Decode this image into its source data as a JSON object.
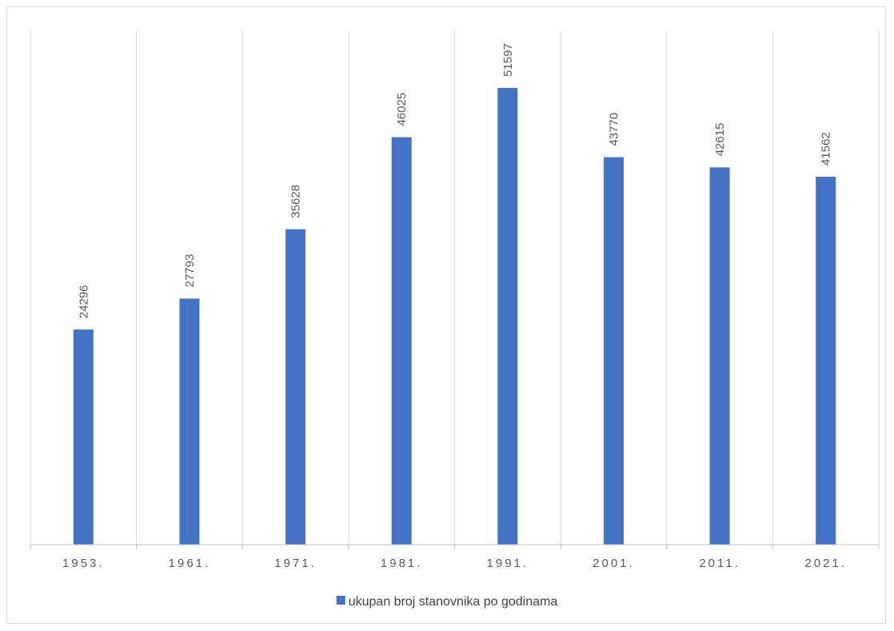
{
  "chart_data": {
    "type": "bar",
    "categories": [
      "1953.",
      "1961.",
      "1971.",
      "1981.",
      "1991.",
      "2001.",
      "2011.",
      "2021."
    ],
    "series": [
      {
        "name": "ukupan broj stanovnika po godinama",
        "values": [
          24296,
          27793,
          35628,
          46025,
          51597,
          43770,
          42615,
          41562
        ],
        "color": "#4472c4"
      }
    ],
    "ylim": [
      0,
      58000
    ],
    "grid": "vertical",
    "legend_position": "bottom",
    "data_labels": true
  }
}
